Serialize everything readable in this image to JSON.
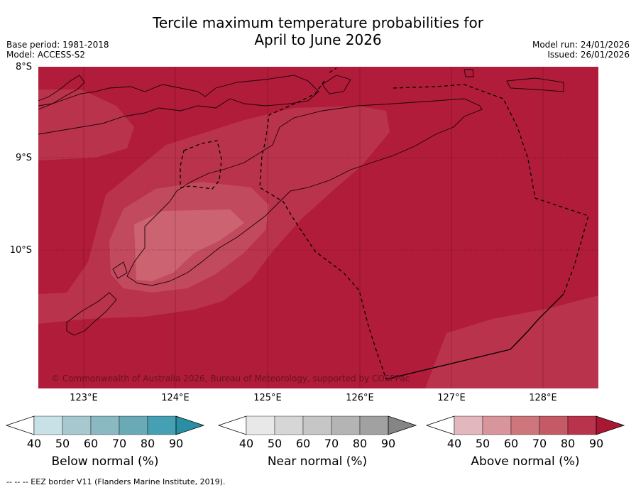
{
  "title": {
    "line1": "Tercile maximum temperature probabilities for",
    "line2": "April to June 2026"
  },
  "meta_left": {
    "base_period": "Base period: 1981-2018",
    "model": "Model: ACCESS-S2"
  },
  "meta_right": {
    "model_run": "Model run: 24/01/2026",
    "issued": "Issued: 26/01/2026"
  },
  "map": {
    "lat_labels": [
      "8°S",
      "9°S",
      "10°S"
    ],
    "lon_labels": [
      "123°E",
      "124°E",
      "125°E",
      "126°E",
      "127°E",
      "128°E"
    ],
    "copyright": "© Commonwealth of Australia 2026, Bureau of Meteorology, supported by COSPPac",
    "dominant_category": "Above normal",
    "colors": {
      "above_90": "#b01c3a",
      "above_80": "#b9334c",
      "above_70": "#c24a5e",
      "above_60": "#cc6370"
    }
  },
  "colorbars": [
    {
      "name": "Below normal (%)",
      "ticks": [
        "40",
        "50",
        "60",
        "70",
        "80",
        "90"
      ],
      "colors": [
        "#ffffff",
        "#c8e1e7",
        "#a7c8ce",
        "#8bb9c2",
        "#6aa9b6",
        "#44a0b2",
        "#2a8fa5"
      ]
    },
    {
      "name": "Near normal (%)",
      "ticks": [
        "40",
        "50",
        "60",
        "70",
        "80",
        "90"
      ],
      "colors": [
        "#ffffff",
        "#e8e8e8",
        "#d6d6d6",
        "#c6c6c6",
        "#b4b4b4",
        "#a1a1a1",
        "#858585"
      ]
    },
    {
      "name": "Above normal (%)",
      "ticks": [
        "40",
        "50",
        "60",
        "70",
        "80",
        "90"
      ],
      "colors": [
        "#ffffff",
        "#e2b7bd",
        "#d9959c",
        "#cd777c",
        "#c45a66",
        "#b9334c",
        "#aa1733"
      ]
    }
  ],
  "footnote": "--  --  -- EEZ border V11 (Flanders Marine Institute, 2019)."
}
